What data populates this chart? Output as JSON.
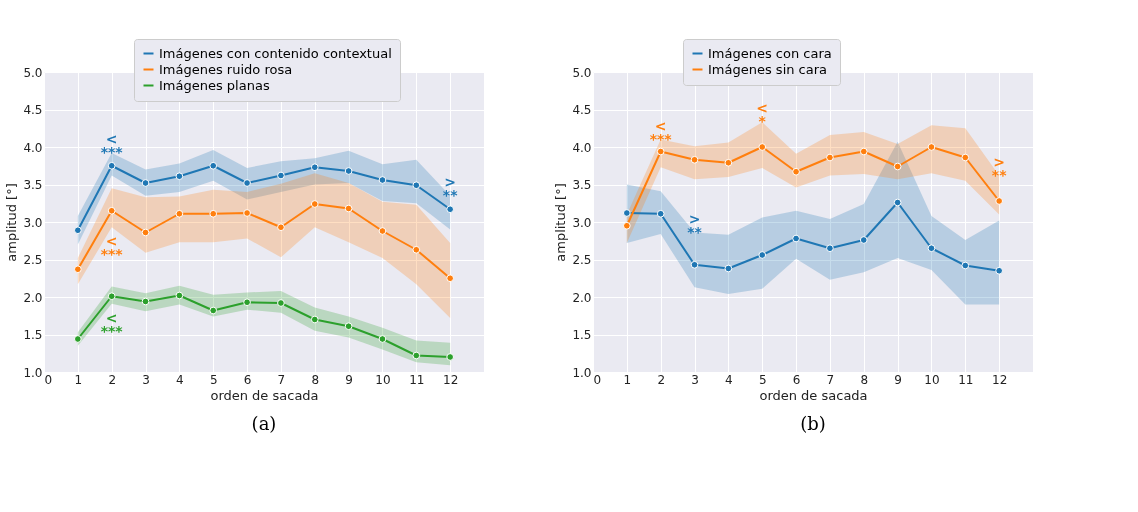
{
  "chart_data": [
    {
      "type": "line",
      "title": "(a)",
      "xlabel": "orden de sacada",
      "ylabel": "amplitud [°]",
      "x": [
        1,
        2,
        3,
        4,
        5,
        6,
        7,
        8,
        9,
        10,
        11,
        12
      ],
      "series": [
        {
          "name": "Imágenes con contenido contextual",
          "color": "#1f77b4",
          "values": [
            2.89,
            3.75,
            3.52,
            3.61,
            3.75,
            3.52,
            3.62,
            3.73,
            3.68,
            3.56,
            3.49,
            3.17
          ],
          "lower": [
            2.7,
            3.62,
            3.35,
            3.4,
            3.55,
            3.3,
            3.4,
            3.5,
            3.52,
            3.28,
            3.25,
            2.9
          ],
          "upper": [
            3.08,
            3.92,
            3.7,
            3.78,
            3.96,
            3.72,
            3.81,
            3.85,
            3.95,
            3.77,
            3.83,
            3.35
          ]
        },
        {
          "name": "Imágenes ruido rosa",
          "color": "#ff7f0e",
          "values": [
            2.37,
            3.15,
            2.86,
            3.11,
            3.11,
            3.12,
            2.93,
            3.24,
            3.18,
            2.88,
            2.63,
            2.25
          ],
          "lower": [
            2.17,
            2.93,
            2.59,
            2.73,
            2.73,
            2.78,
            2.53,
            2.93,
            2.73,
            2.52,
            2.17,
            1.72
          ],
          "upper": [
            2.52,
            3.45,
            3.33,
            3.34,
            3.43,
            3.4,
            3.51,
            3.65,
            3.52,
            3.27,
            3.23,
            2.72
          ]
        },
        {
          "name": "Imágenes planas",
          "color": "#2ca02c",
          "values": [
            1.44,
            2.01,
            1.94,
            2.02,
            1.82,
            1.93,
            1.92,
            1.7,
            1.61,
            1.44,
            1.22,
            1.2
          ],
          "lower": [
            1.35,
            1.91,
            1.81,
            1.9,
            1.74,
            1.83,
            1.79,
            1.55,
            1.46,
            1.3,
            1.13,
            1.09
          ],
          "upper": [
            1.53,
            2.14,
            2.05,
            2.15,
            2.03,
            2.06,
            2.08,
            1.86,
            1.74,
            1.59,
            1.42,
            1.39
          ]
        }
      ],
      "xlim": [
        0,
        13
      ],
      "xticks": [
        0,
        1,
        2,
        3,
        4,
        5,
        6,
        7,
        8,
        9,
        10,
        11,
        12
      ],
      "ylim": [
        1,
        5
      ],
      "yticks": [
        {
          "value": 1,
          "label": "1.0"
        },
        {
          "value": 1.5,
          "label": "1.5"
        },
        {
          "value": 2,
          "label": "2.0"
        },
        {
          "value": 2.5,
          "label": "2.5"
        },
        {
          "value": 3,
          "label": "3.0"
        },
        {
          "value": 3.5,
          "label": "3.5"
        },
        {
          "value": 4,
          "label": "4.0"
        },
        {
          "value": 4.5,
          "label": "4.5"
        },
        {
          "value": 5,
          "label": "5.0"
        }
      ],
      "grid": true,
      "legend": "top",
      "marker": "circle",
      "line_style": "solid",
      "annotations": [
        {
          "text": "<\n***",
          "x": 2,
          "y": 3.92
        },
        {
          "text": "<\n***",
          "x": 2,
          "y": 2.93
        },
        {
          "text": "<\n***",
          "x": 2,
          "y": 1.91
        },
        {
          "text": ">\n**",
          "x": 12,
          "y": 3.35
        }
      ]
    },
    {
      "type": "line",
      "title": "(b)",
      "xlabel": "orden de sacada",
      "ylabel": "amplitud [°]",
      "x": [
        1,
        2,
        3,
        4,
        5,
        6,
        7,
        8,
        9,
        10,
        11,
        12
      ],
      "series": [
        {
          "name": "Imágenes con cara",
          "color": "#1f77b4",
          "values": [
            3.12,
            3.11,
            2.43,
            2.38,
            2.56,
            2.78,
            2.65,
            2.76,
            3.26,
            2.65,
            2.42,
            2.35
          ],
          "lower": [
            2.72,
            2.84,
            2.13,
            2.04,
            2.11,
            2.51,
            2.23,
            2.33,
            2.52,
            2.36,
            1.9,
            1.9
          ],
          "upper": [
            3.5,
            3.41,
            2.86,
            2.83,
            3.06,
            3.15,
            3.04,
            3.24,
            4.07,
            3.08,
            2.76,
            3.02
          ]
        },
        {
          "name": "Imágenes sin cara",
          "color": "#ff7f0e",
          "values": [
            2.95,
            3.94,
            3.83,
            3.79,
            4.0,
            3.67,
            3.86,
            3.94,
            3.74,
            4.0,
            3.86,
            3.28
          ],
          "lower": [
            2.72,
            3.73,
            3.57,
            3.6,
            3.72,
            3.46,
            3.62,
            3.64,
            3.57,
            3.65,
            3.55,
            3.1
          ],
          "upper": [
            3.1,
            4.1,
            4.01,
            4.06,
            4.33,
            3.91,
            4.16,
            4.2,
            4.04,
            4.29,
            4.25,
            3.62
          ]
        }
      ],
      "xlim": [
        0,
        13
      ],
      "xticks": [
        0,
        1,
        2,
        3,
        4,
        5,
        6,
        7,
        8,
        9,
        10,
        11,
        12
      ],
      "ylim": [
        1,
        5
      ],
      "yticks": [
        {
          "value": 1,
          "label": "1.0"
        },
        {
          "value": 1.5,
          "label": "1.5"
        },
        {
          "value": 2,
          "label": "2.0"
        },
        {
          "value": 2.5,
          "label": "2.5"
        },
        {
          "value": 3,
          "label": "3.0"
        },
        {
          "value": 3.5,
          "label": "3.5"
        },
        {
          "value": 4,
          "label": "4.0"
        },
        {
          "value": 4.5,
          "label": "4.5"
        },
        {
          "value": 5,
          "label": "5.0"
        }
      ],
      "grid": true,
      "legend": "top",
      "marker": "circle",
      "line_style": "solid",
      "annotations": [
        {
          "text": ">\n**",
          "x": 3,
          "y": 2.86
        },
        {
          "text": "<\n***",
          "x": 2,
          "y": 4.1
        },
        {
          "text": "<\n*",
          "x": 5,
          "y": 4.33
        },
        {
          "text": ">\n**",
          "x": 12,
          "y": 3.62
        }
      ]
    }
  ]
}
